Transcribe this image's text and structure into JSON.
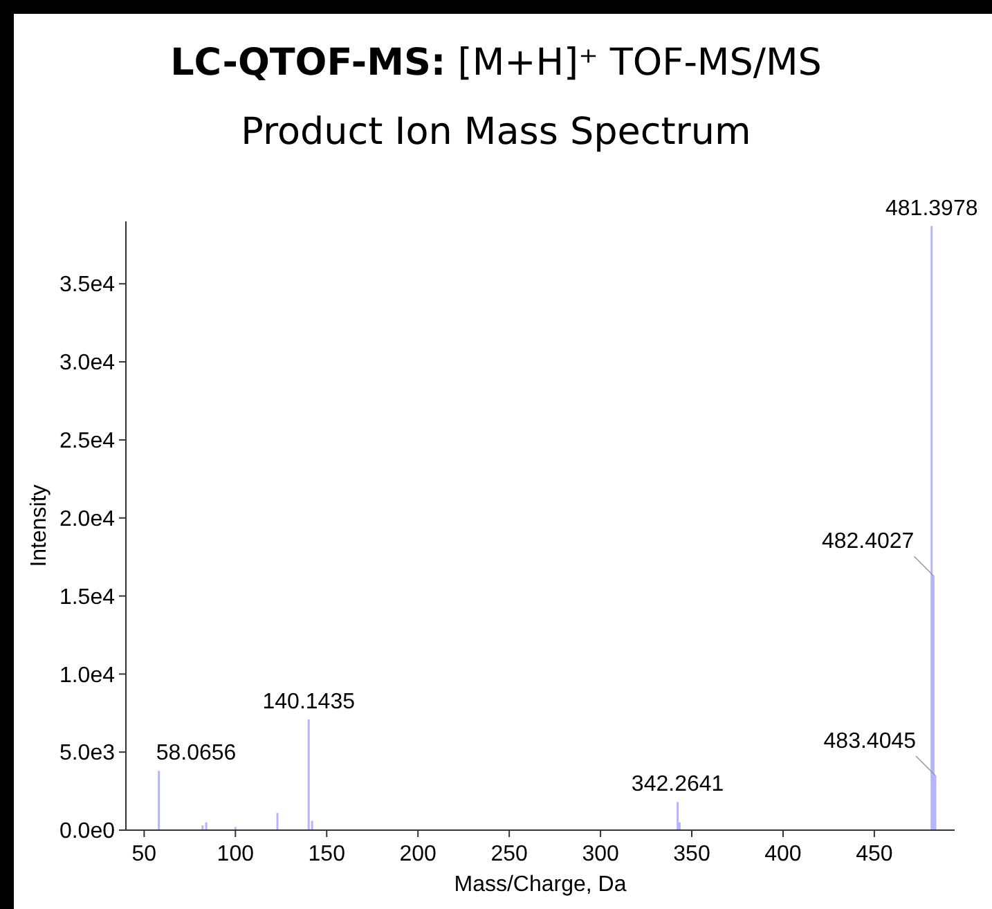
{
  "chart_data": {
    "type": "bar",
    "title": "LC-QTOF-MS: [M+H]⁺ TOF-MS/MS",
    "subtitle": "Product Ion Mass Spectrum",
    "xlabel": "Mass/Charge, Da",
    "ylabel": "Intensity",
    "x": [
      58.0656,
      82,
      84,
      100,
      123,
      140.1435,
      142,
      342.2641,
      343.3,
      481.3978,
      482.4027,
      483.4045
    ],
    "values": [
      3800,
      300,
      500,
      200,
      1100,
      7100,
      600,
      1800,
      500,
      38700,
      16300,
      3500
    ],
    "color": "#b4b4ff",
    "xlim": [
      40,
      494
    ],
    "xticks": [
      50,
      100,
      150,
      200,
      250,
      300,
      350,
      400,
      450
    ],
    "ylim": [
      0,
      39000
    ],
    "yticks": [
      {
        "value": 0,
        "label": "0.0e0"
      },
      {
        "value": 5000,
        "label": "5.0e3"
      },
      {
        "value": 10000,
        "label": "1.0e4"
      },
      {
        "value": 15000,
        "label": "1.5e4"
      },
      {
        "value": 20000,
        "label": "2.0e4"
      },
      {
        "value": 25000,
        "label": "2.5e4"
      },
      {
        "value": 30000,
        "label": "3.0e4"
      },
      {
        "value": 35000,
        "label": "3.5e4"
      }
    ],
    "annotations": [
      {
        "text": "58.0656",
        "x": 58.0656,
        "y": 3800
      },
      {
        "text": "140.1435",
        "x": 140.1435,
        "y": 7100
      },
      {
        "text": "342.2641",
        "x": 342.2641,
        "y": 1800
      },
      {
        "text": "481.3978",
        "x": 481.3978,
        "y": 38700
      },
      {
        "text": "482.4027",
        "x": 482.4027,
        "y": 16300
      },
      {
        "text": "483.4045",
        "x": 483.4045,
        "y": 3500
      }
    ],
    "grid": false
  }
}
